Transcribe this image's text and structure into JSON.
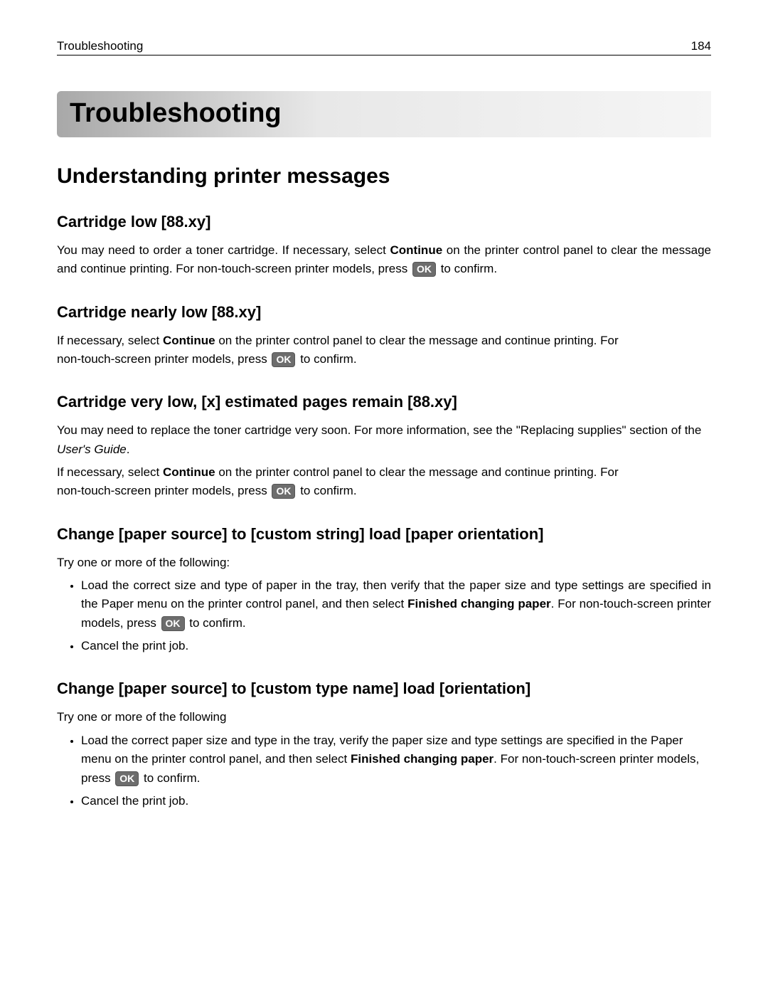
{
  "header": {
    "breadcrumb": "Troubleshooting",
    "page_number": "184"
  },
  "chapter_title": "Troubleshooting",
  "section_title": "Understanding printer messages",
  "ok_label": "OK",
  "sub1": {
    "heading": "Cartridge low [88.xy]",
    "p1a": "You may need to order a toner cartridge. If necessary, select ",
    "p1b": "Continue",
    "p1c": " on the printer control panel to clear the message and continue printing. For non‑touch‑screen printer models, press ",
    "p1d": " to confirm."
  },
  "sub2": {
    "heading": "Cartridge nearly low [88.xy]",
    "p1a": "If necessary, select ",
    "p1b": "Continue",
    "p1c": " on the printer control panel to clear the message and continue printing. For non‑touch‑screen printer models, press ",
    "p1d": " to confirm."
  },
  "sub3": {
    "heading": "Cartridge very low, [x] estimated pages remain [88.xy]",
    "p1a": "You may need to replace the toner cartridge very soon. For more information, see the \"Replacing supplies\" section of the ",
    "p1b": "User's Guide",
    "p1c": ".",
    "p2a": "If necessary, select ",
    "p2b": "Continue",
    "p2c": " on the printer control panel to clear the message and continue printing. For non‑touch‑screen printer models, press ",
    "p2d": " to confirm."
  },
  "sub4": {
    "heading": "Change [paper source] to [custom string] load [paper orientation]",
    "intro": "Try one or more of the following:",
    "li1a": "Load the correct size and type of paper in the tray, then verify that the paper size and type settings are specified in the Paper menu on the printer control panel, and then select ",
    "li1b": "Finished changing paper",
    "li1c": ". For non‑touch‑screen printer models, press ",
    "li1d": " to confirm.",
    "li2": "Cancel the print job."
  },
  "sub5": {
    "heading": "Change [paper source] to [custom type name] load [orientation]",
    "intro": "Try one or more of the following",
    "li1a": "Load the correct paper size and type in the tray, verify the paper size and type settings are specified in the Paper menu on the printer control panel, and then select ",
    "li1b": "Finished changing paper",
    "li1c": ". For non‑touch‑screen printer models, press ",
    "li1d": " to confirm.",
    "li2": "Cancel the print job."
  }
}
